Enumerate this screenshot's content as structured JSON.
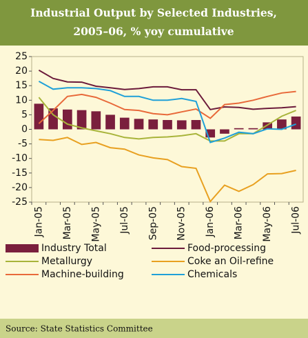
{
  "chart_data": {
    "type": "bar",
    "title": "Industrial Output by Selected Industries, 2005–06, % yoy cumulative",
    "source": "Source: State Statistics Committee",
    "categories": [
      "Jan-05",
      null,
      "Mar-05",
      null,
      "May-05",
      null,
      "Jul-05",
      null,
      "Sep-05",
      null,
      "Nov-05",
      null,
      "Jan-06",
      null,
      "Mar-06",
      null,
      "May-06",
      null,
      "Jul-06"
    ],
    "ylim": [
      -25,
      25
    ],
    "yticks": [
      -25,
      -20,
      -15,
      -10,
      -5,
      0,
      5,
      10,
      15,
      20,
      25
    ],
    "grid": false,
    "series": [
      {
        "name": "Industry Total",
        "type": "bar",
        "color": "#7a1f3d",
        "values": [
          8.8,
          7.2,
          6.8,
          6.6,
          6.2,
          5.0,
          4.0,
          3.6,
          3.4,
          3.2,
          3.1,
          3.2,
          -2.8,
          -1.5,
          0.4,
          0.4,
          2.4,
          3.4,
          4.4
        ]
      },
      {
        "name": "Food-processing",
        "type": "line",
        "color": "#6b1a3a",
        "values": [
          20.3,
          17.5,
          16.3,
          16.2,
          14.8,
          14.3,
          13.7,
          14.0,
          14.6,
          14.6,
          13.6,
          13.6,
          6.8,
          7.7,
          7.5,
          6.9,
          7.2,
          7.4,
          7.8
        ]
      },
      {
        "name": "Metallurgy",
        "type": "line",
        "color": "#a8b43a",
        "values": [
          11.0,
          5.0,
          1.8,
          0.5,
          -0.5,
          -1.5,
          -2.8,
          -3.3,
          -2.8,
          -2.6,
          -2.2,
          -1.5,
          -4.0,
          -4.0,
          -1.5,
          -1.5,
          1.5,
          4.5,
          6.5
        ]
      },
      {
        "name": "Coke an Oil-refine",
        "type": "line",
        "color": "#e8a020",
        "values": [
          -3.5,
          -3.8,
          -2.8,
          -5.2,
          -4.5,
          -6.3,
          -6.8,
          -8.8,
          -9.8,
          -10.4,
          -12.8,
          -13.4,
          -24.8,
          -19.2,
          -21.3,
          -19.0,
          -15.3,
          -15.2,
          -14.1
        ]
      },
      {
        "name": "Machine-building",
        "type": "line",
        "color": "#e8693a",
        "values": [
          2.0,
          6.5,
          11.3,
          12.0,
          11.0,
          9.0,
          6.8,
          6.5,
          5.4,
          5.0,
          6.0,
          7.0,
          3.8,
          8.5,
          9.0,
          10.0,
          11.3,
          12.5,
          13.0
        ]
      },
      {
        "name": "Chemicals",
        "type": "line",
        "color": "#1fa0d8",
        "values": [
          16.5,
          13.8,
          14.3,
          14.3,
          14.0,
          13.3,
          11.3,
          11.3,
          10.0,
          10.0,
          10.6,
          9.6,
          -4.5,
          -3.0,
          -1.0,
          -1.5,
          0.2,
          0.0,
          1.8
        ]
      }
    ]
  }
}
